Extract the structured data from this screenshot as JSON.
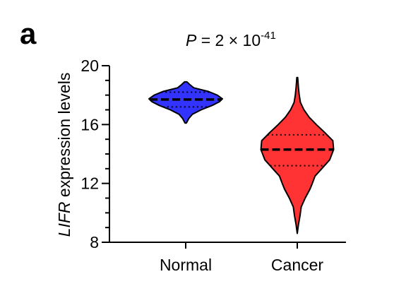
{
  "panel_label": "a",
  "stat": {
    "p_symbol": "P",
    "p_equals": " = 2 × 10",
    "p_exponent": "-41"
  },
  "colors": {
    "normal": "#3333ff",
    "cancer": "#ff3333",
    "outline": "#000000"
  },
  "chart_data": {
    "type": "violin",
    "ylabel_italic": "LIFR",
    "ylabel_rest": " expression levels",
    "ylim": [
      8,
      20
    ],
    "yticks": [
      8,
      12,
      16,
      20
    ],
    "ytick_labels": [
      "8",
      "12",
      "16",
      "20"
    ],
    "minor_tick_step": 1,
    "categories": [
      "Normal",
      "Cancer"
    ],
    "series": [
      {
        "category": "Normal",
        "color": "#3333ff",
        "median": 17.7,
        "q1": 17.2,
        "q3": 18.2,
        "min": 16.1,
        "max": 18.9,
        "profile": [
          [
            16.1,
            0.02
          ],
          [
            16.4,
            0.08
          ],
          [
            16.7,
            0.18
          ],
          [
            17.0,
            0.42
          ],
          [
            17.3,
            0.72
          ],
          [
            17.55,
            0.92
          ],
          [
            17.75,
            1.0
          ],
          [
            18.0,
            0.86
          ],
          [
            18.25,
            0.62
          ],
          [
            18.5,
            0.22
          ],
          [
            18.7,
            0.12
          ],
          [
            18.9,
            0.03
          ]
        ]
      },
      {
        "category": "Cancer",
        "color": "#ff3333",
        "median": 14.3,
        "q1": 13.2,
        "q3": 15.3,
        "min": 8.6,
        "max": 19.2,
        "profile": [
          [
            8.6,
            0.0
          ],
          [
            9.2,
            0.03
          ],
          [
            9.8,
            0.07
          ],
          [
            10.4,
            0.1
          ],
          [
            11.0,
            0.2
          ],
          [
            11.6,
            0.32
          ],
          [
            12.0,
            0.38
          ],
          [
            12.5,
            0.45
          ],
          [
            13.0,
            0.62
          ],
          [
            13.6,
            0.82
          ],
          [
            14.3,
            0.92
          ],
          [
            14.9,
            0.9
          ],
          [
            15.5,
            0.68
          ],
          [
            16.0,
            0.48
          ],
          [
            16.5,
            0.3
          ],
          [
            17.0,
            0.17
          ],
          [
            17.5,
            0.08
          ],
          [
            18.0,
            0.05
          ],
          [
            18.5,
            0.03
          ],
          [
            19.2,
            0.01
          ]
        ]
      }
    ]
  }
}
